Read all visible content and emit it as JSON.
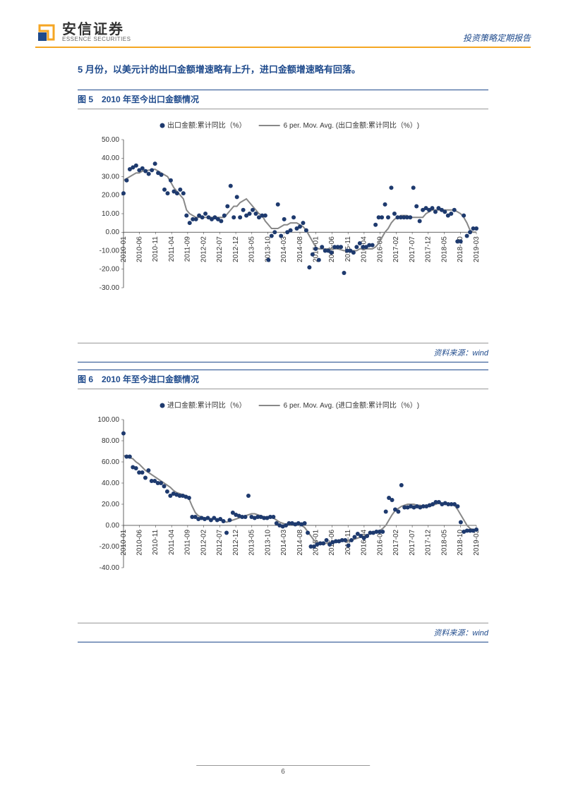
{
  "header": {
    "logo_cn": "安信证券",
    "logo_en": "ESSENCE SECURITIES",
    "right_text": "投资策略定期报告"
  },
  "intro": "5 月份，以美元计的出口金额增速略有上升，进口金额增速略有回落。",
  "chart5": {
    "title": "图 5　2010 年至今出口金额情况",
    "legend_series": "出口金额:累计同比（%）",
    "legend_avg": "6 per. Mov. Avg. (出口金额:累计同比（%）)",
    "source": "资料来源：wind",
    "ylim": [
      -30,
      50
    ],
    "ytick_step": 10,
    "y_labels": [
      "50.00",
      "40.00",
      "30.00",
      "20.00",
      "10.00",
      "0.00",
      "-10.00",
      "-20.00",
      "-30.00"
    ],
    "x_labels_sparse": [
      "2010-01",
      "2010-06",
      "2010-11",
      "2011-04",
      "2011-09",
      "2012-02",
      "2012-07",
      "2012-12",
      "2013-05",
      "2013-10",
      "2014-03",
      "2014-08",
      "2015-01",
      "2015-06",
      "2015-11",
      "2016-04",
      "2016-09",
      "2017-02",
      "2017-07",
      "2017-12",
      "2018-05",
      "2018-10",
      "2019-03"
    ],
    "scatter": [
      21,
      28,
      34,
      35,
      36,
      33.5,
      34.5,
      33,
      31.5,
      33.5,
      37,
      32,
      31,
      23,
      21,
      28,
      22,
      21,
      23,
      21,
      9,
      5,
      7,
      7,
      9,
      8,
      10,
      8,
      7,
      8,
      7,
      6,
      9,
      14,
      25,
      8,
      19,
      8,
      12,
      9,
      10,
      12,
      10,
      8,
      9,
      9,
      -15,
      -2,
      0,
      15,
      -2,
      7,
      0,
      1,
      8,
      2,
      3,
      5,
      1,
      -19,
      -12,
      -9,
      -15,
      -8,
      -10,
      -10,
      -11,
      -8,
      -8,
      -8,
      -22,
      -10,
      -10,
      -11,
      -8,
      -6,
      -8,
      -8,
      -7,
      -7,
      4,
      8,
      8,
      15,
      8,
      24,
      10,
      8,
      8,
      8,
      8,
      8,
      24,
      14,
      6,
      12,
      13,
      12,
      13,
      11,
      13,
      12,
      11,
      9,
      10,
      12,
      -5,
      -5,
      9,
      -2,
      0,
      2,
      2
    ],
    "avg": [
      28,
      29,
      30,
      31,
      32,
      32,
      33,
      33.2,
      33.5,
      33.8,
      34,
      33,
      32,
      31,
      30,
      27,
      24,
      22,
      20,
      18,
      12,
      10,
      9,
      8,
      8,
      8,
      8,
      8,
      8,
      8,
      8,
      8,
      8,
      10,
      12,
      14,
      14,
      16,
      17,
      18,
      16,
      14,
      12,
      10,
      9,
      6,
      4,
      2,
      2,
      2,
      3,
      4,
      4,
      5,
      5,
      5,
      4,
      3,
      1,
      -2,
      -5,
      -8,
      -9,
      -9,
      -9,
      -9,
      -9,
      -9,
      -9,
      -9.5,
      -10,
      -10,
      -10,
      -10,
      -10,
      -9,
      -9,
      -9,
      -9,
      -9,
      -8,
      -6,
      -3,
      0,
      2,
      5,
      7,
      8,
      9,
      9,
      9,
      8,
      8,
      8,
      8,
      8,
      10,
      11,
      12,
      12,
      12,
      12,
      12,
      12,
      12,
      12,
      11,
      10,
      8,
      5,
      1,
      0,
      0
    ],
    "scatter_color": "#1e3a6e",
    "line_color": "#888888",
    "line_width": 2,
    "marker_size": 3,
    "grid_color": "#cccccc",
    "bg_color": "#ffffff",
    "label_fontsize": 10
  },
  "chart6": {
    "title": "图 6　2010 年至今进口金额情况",
    "legend_series": "进口金额:累计同比（%）",
    "legend_avg": "6 per. Mov. Avg. (进口金额:累计同比（%）)",
    "source": "资料来源：wind",
    "ylim": [
      -40,
      100
    ],
    "ytick_step": 20,
    "y_labels": [
      "100.00",
      "80.00",
      "60.00",
      "40.00",
      "20.00",
      "0.00",
      "-20.00",
      "-40.00"
    ],
    "x_labels_sparse": [
      "2010-01",
      "2010-06",
      "2010-11",
      "2011-04",
      "2011-09",
      "2012-02",
      "2012-07",
      "2012-12",
      "2013-05",
      "2013-10",
      "2014-03",
      "2014-08",
      "2015-01",
      "2015-06",
      "2015-11",
      "2016-04",
      "2016-09",
      "2017-02",
      "2017-07",
      "2017-12",
      "2018-05",
      "2018-10",
      "2019-03"
    ],
    "scatter": [
      87,
      65,
      65,
      55,
      54,
      50,
      50,
      45,
      52,
      42,
      42,
      40,
      40,
      37,
      32,
      28,
      30,
      29,
      28,
      28,
      27,
      26,
      8,
      8,
      6,
      7,
      6,
      7,
      5,
      7,
      5,
      6,
      4,
      -7,
      5,
      12,
      10,
      9,
      8,
      8,
      28,
      8,
      7,
      8,
      8,
      7,
      7,
      8,
      8,
      2,
      0,
      -1,
      0,
      2,
      2,
      1,
      2,
      1,
      2,
      -7,
      -20,
      -20,
      -18,
      -17,
      -17,
      -14,
      -18,
      -16,
      -15,
      -15,
      -14,
      -14,
      -19,
      -14,
      -11,
      -8,
      -10,
      -12,
      -10,
      -7,
      -7,
      -6,
      -6,
      -6,
      13,
      26,
      24,
      15,
      13,
      38,
      17,
      17,
      18,
      17,
      18,
      17,
      18,
      18,
      19,
      20,
      22,
      22,
      20,
      21,
      20,
      20,
      20,
      18,
      3,
      -6,
      -5,
      -5,
      -5,
      -4
    ],
    "avg": [
      66,
      65,
      64,
      63,
      60,
      58,
      55,
      52,
      50,
      48,
      46,
      44,
      42,
      40,
      38,
      36,
      33,
      31,
      30,
      29,
      28,
      25,
      18,
      12,
      9,
      8,
      7,
      7,
      6,
      6,
      6,
      5,
      4,
      3,
      4,
      5,
      6,
      7,
      8,
      9,
      10,
      11,
      11,
      10,
      9,
      8,
      8,
      8,
      7,
      5,
      3,
      2,
      1,
      1,
      1,
      1,
      1,
      0,
      -2,
      -6,
      -10,
      -14,
      -16,
      -17,
      -17,
      -17,
      -16,
      -16,
      -16,
      -15,
      -15,
      -15,
      -15,
      -14,
      -13,
      -12,
      -11,
      -10,
      -9,
      -8,
      -7,
      -6,
      -5,
      -3,
      0,
      5,
      10,
      14,
      16,
      18,
      19,
      20,
      20,
      20,
      19,
      19,
      18,
      18,
      18,
      19,
      20,
      21,
      21,
      21,
      21,
      20,
      19,
      15,
      10,
      5,
      0,
      -3,
      -4,
      -5
    ],
    "scatter_color": "#1e3a6e",
    "line_color": "#888888",
    "line_width": 2,
    "marker_size": 3,
    "grid_color": "#cccccc",
    "bg_color": "#ffffff",
    "label_fontsize": 10
  },
  "page_number": "6"
}
